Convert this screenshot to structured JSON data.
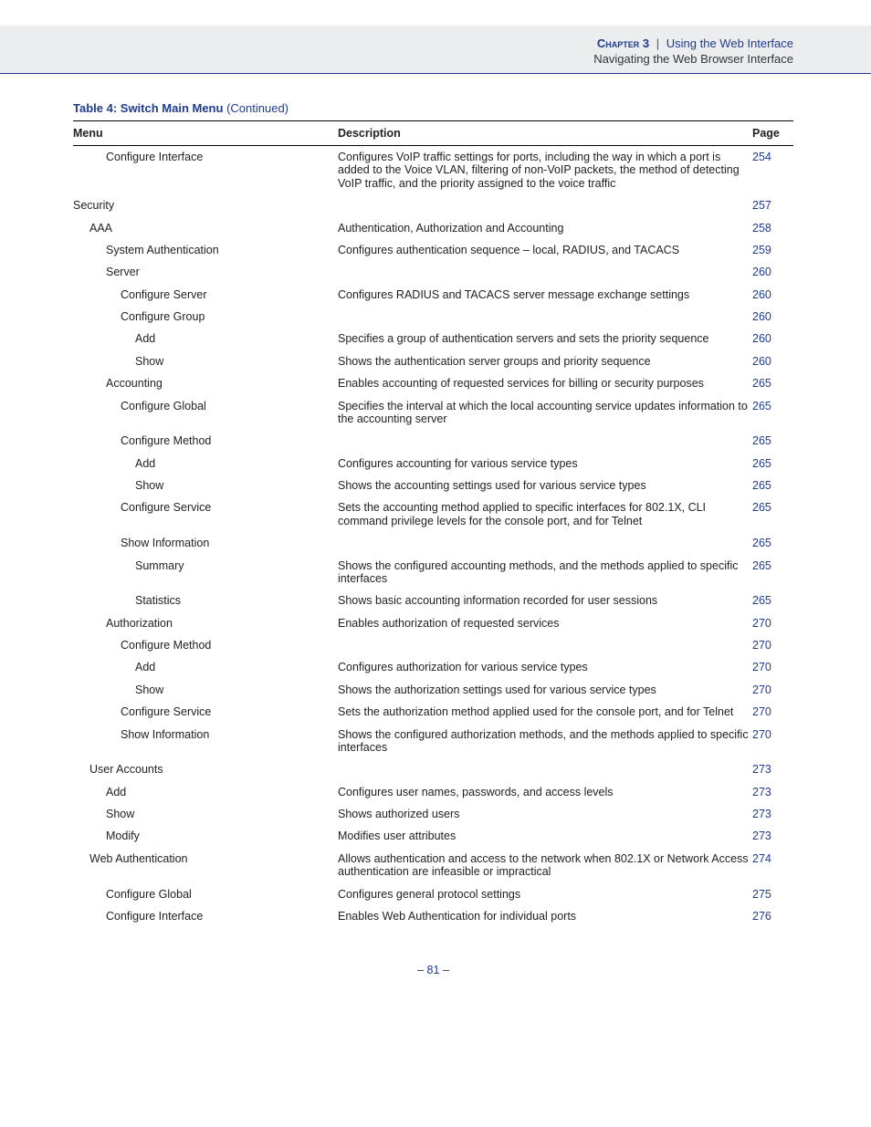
{
  "header": {
    "chapter_label": "Chapter 3",
    "separator": "|",
    "title": "Using the Web Interface",
    "subtitle": "Navigating the Web Browser Interface"
  },
  "caption": {
    "label": "Table 4: Switch Main Menu",
    "continued": "(Continued)"
  },
  "columns": {
    "menu": "Menu",
    "description": "Description",
    "page": "Page"
  },
  "rows": [
    {
      "indent": 2,
      "menu": "Configure Interface",
      "desc": "Configures VoIP traffic settings for ports, including the way in which a port is added to the Voice VLAN, filtering of non-VoIP packets, the method of detecting VoIP traffic, and the priority assigned to the voice traffic",
      "page": "254"
    },
    {
      "indent": 0,
      "menu": "Security",
      "desc": "",
      "page": "257"
    },
    {
      "indent": 1,
      "menu": "AAA",
      "desc": "Authentication, Authorization and Accounting",
      "page": "258"
    },
    {
      "indent": 2,
      "menu": "System Authentication",
      "desc": "Configures authentication sequence – local, RADIUS, and TACACS",
      "page": "259"
    },
    {
      "indent": 2,
      "menu": "Server",
      "desc": "",
      "page": "260"
    },
    {
      "indent": 3,
      "menu": "Configure Server",
      "desc": "Configures RADIUS and TACACS server message exchange settings",
      "page": "260"
    },
    {
      "indent": 3,
      "menu": "Configure Group",
      "desc": "",
      "page": "260"
    },
    {
      "indent": 4,
      "menu": "Add",
      "desc": "Specifies a group of authentication servers and sets the priority sequence",
      "page": "260"
    },
    {
      "indent": 4,
      "menu": "Show",
      "desc": "Shows the authentication server groups and priority sequence",
      "page": "260"
    },
    {
      "indent": 2,
      "menu": "Accounting",
      "desc": "Enables accounting of requested services for billing or security purposes",
      "page": "265"
    },
    {
      "indent": 3,
      "menu": "Configure Global",
      "desc": "Specifies the interval at which the local accounting service updates information to the accounting server",
      "page": "265"
    },
    {
      "indent": 3,
      "menu": "Configure Method",
      "desc": "",
      "page": "265"
    },
    {
      "indent": 4,
      "menu": "Add",
      "desc": "Configures accounting for various service types",
      "page": "265"
    },
    {
      "indent": 4,
      "menu": "Show",
      "desc": "Shows the accounting settings used for various service types",
      "page": "265"
    },
    {
      "indent": 3,
      "menu": "Configure Service",
      "desc": "Sets the accounting method applied to specific interfaces for 802.1X, CLI command privilege levels for the console port, and for Telnet",
      "page": "265"
    },
    {
      "indent": 3,
      "menu": "Show Information",
      "desc": "",
      "page": "265"
    },
    {
      "indent": 4,
      "menu": "Summary",
      "desc": "Shows the configured accounting methods, and the methods applied to specific interfaces",
      "page": "265"
    },
    {
      "indent": 4,
      "menu": "Statistics",
      "desc": "Shows basic accounting information recorded for user sessions",
      "page": "265"
    },
    {
      "indent": 2,
      "menu": "Authorization",
      "desc": "Enables authorization of requested services",
      "page": "270"
    },
    {
      "indent": 3,
      "menu": "Configure Method",
      "desc": "",
      "page": "270"
    },
    {
      "indent": 4,
      "menu": "Add",
      "desc": "Configures authorization for various service types",
      "page": "270"
    },
    {
      "indent": 4,
      "menu": "Show",
      "desc": "Shows the authorization settings used for various service types",
      "page": "270"
    },
    {
      "indent": 3,
      "menu": "Configure Service",
      "desc": "Sets the authorization method applied used for the console port, and for Telnet",
      "page": "270"
    },
    {
      "indent": 3,
      "menu": "Show Information",
      "desc": "Shows the configured authorization methods, and the methods applied to specific interfaces",
      "page": "270"
    },
    {
      "indent": 1,
      "menu": "User Accounts",
      "desc": "",
      "page": "273"
    },
    {
      "indent": 2,
      "menu": "Add",
      "desc": "Configures user names, passwords, and access levels",
      "page": "273"
    },
    {
      "indent": 2,
      "menu": "Show",
      "desc": "Shows authorized users",
      "page": "273"
    },
    {
      "indent": 2,
      "menu": "Modify",
      "desc": "Modifies user attributes",
      "page": "273"
    },
    {
      "indent": 1,
      "menu": "Web Authentication",
      "desc": "Allows authentication and access to the network when 802.1X or Network Access authentication are infeasible or impractical",
      "page": "274"
    },
    {
      "indent": 2,
      "menu": "Configure Global",
      "desc": "Configures general protocol settings",
      "page": "275"
    },
    {
      "indent": 2,
      "menu": "Configure Interface",
      "desc": "Enables Web Authentication for individual ports",
      "page": "276"
    }
  ],
  "footer": {
    "dash": "–",
    "page_number": "81"
  },
  "colors": {
    "link": "#1f3b8f",
    "band_bg": "#ecedef",
    "text": "#222222"
  }
}
